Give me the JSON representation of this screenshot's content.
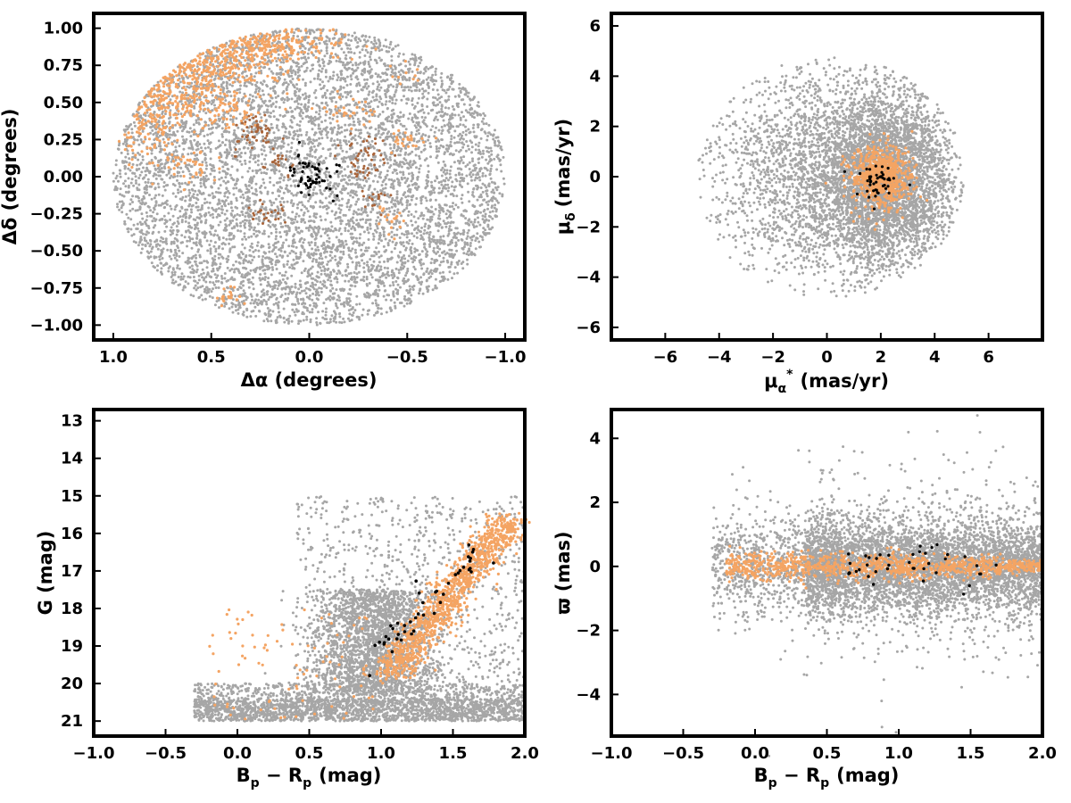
{
  "colors": {
    "field": "#a6a6a6",
    "orange": "#f4a463",
    "brown": "#a9653b",
    "black": "#000000"
  },
  "chart_data": [
    {
      "type": "scatter",
      "xlabel": "Δα (degrees)",
      "ylabel": "Δδ (degrees)",
      "xlim": [
        1.1,
        -1.1
      ],
      "ylim": [
        -1.1,
        1.1
      ],
      "x_reversed": true,
      "xticks": [
        "1.0",
        "0.5",
        "0.0",
        "−0.5",
        "−1.0"
      ],
      "xtick_values": [
        1.0,
        0.5,
        0.0,
        -0.5,
        -1.0
      ],
      "yticks": [
        "1.00",
        "0.75",
        "0.50",
        "0.25",
        "0.00",
        "−0.25",
        "−0.50",
        "−0.75",
        "−1.00"
      ],
      "ytick_values": [
        1.0,
        0.75,
        0.5,
        0.25,
        0.0,
        -0.25,
        -0.5,
        -0.75,
        -1.0
      ],
      "grid": false,
      "series": [
        {
          "role": "field stars",
          "color": "#a6a6a6",
          "sample_points": [
            [
              0.8,
              0.4
            ],
            [
              -0.6,
              -0.5
            ],
            [
              0.2,
              -0.9
            ],
            [
              -0.9,
              0.1
            ],
            [
              0.0,
              0.95
            ],
            [
              0.5,
              -0.5
            ],
            [
              -0.3,
              0.6
            ],
            [
              0.9,
              -0.1
            ]
          ]
        },
        {
          "role": "orange members",
          "color": "#f4a463",
          "sample_points": [
            [
              0.5,
              0.8
            ],
            [
              0.75,
              0.5
            ],
            [
              0.9,
              0.3
            ],
            [
              0.3,
              0.9
            ],
            [
              -0.2,
              0.3
            ],
            [
              -0.45,
              -0.3
            ],
            [
              0.45,
              -0.85
            ],
            [
              0.1,
              0.95
            ]
          ]
        },
        {
          "role": "brown members",
          "color": "#a9653b",
          "sample_points": [
            [
              0.28,
              0.35
            ],
            [
              -0.35,
              0.12
            ],
            [
              0.2,
              -0.25
            ],
            [
              -0.2,
              0.1
            ],
            [
              0.25,
              0.15
            ]
          ]
        },
        {
          "role": "black members",
          "color": "#000000",
          "sample_points": [
            [
              0.05,
              0.05
            ],
            [
              -0.02,
              -0.08
            ],
            [
              0.1,
              0.0
            ],
            [
              -0.08,
              0.1
            ],
            [
              0.0,
              -0.1
            ]
          ]
        }
      ]
    },
    {
      "type": "scatter",
      "xlabel": "μ",
      "xlabel_sub": "α",
      "xlabel_sup": "*",
      "xlabel_units": "(mas/yr)",
      "ylabel": "μ",
      "ylabel_sub": "δ",
      "ylabel_units": "(mas/yr)",
      "xlim": [
        -8,
        8
      ],
      "ylim": [
        -6.5,
        6.5
      ],
      "xticks": [
        "−6",
        "−4",
        "−2",
        "0",
        "2",
        "4",
        "6"
      ],
      "xtick_values": [
        -6,
        -4,
        -2,
        0,
        2,
        4,
        6
      ],
      "yticks": [
        "6",
        "4",
        "2",
        "0",
        "−2",
        "−4",
        "−6"
      ],
      "ytick_values": [
        6,
        4,
        2,
        0,
        -2,
        -4,
        -6
      ],
      "grid": false,
      "series": [
        {
          "role": "field stars",
          "color": "#a6a6a6",
          "sample_points": [
            [
              2,
              2
            ],
            [
              1,
              -1
            ],
            [
              3,
              -3
            ],
            [
              -2,
              1
            ],
            [
              4,
              0
            ],
            [
              0,
              3
            ]
          ]
        },
        {
          "role": "orange members",
          "color": "#f4a463",
          "sample_points": [
            [
              2,
              0
            ],
            [
              1.8,
              -0.5
            ],
            [
              2.3,
              0.4
            ],
            [
              1.5,
              0.2
            ]
          ]
        },
        {
          "role": "black members",
          "color": "#000000",
          "sample_points": [
            [
              1.9,
              -0.3
            ],
            [
              2.1,
              0.1
            ],
            [
              1.6,
              -0.5
            ]
          ]
        }
      ]
    },
    {
      "type": "scatter",
      "xlabel": "B",
      "xlabel_sub1": "p",
      "xlabel_mid": " − R",
      "xlabel_sub2": "p",
      "xlabel_units": "(mag)",
      "ylabel": "G (mag)",
      "xlim": [
        -1.0,
        2.0
      ],
      "ylim": [
        21.4,
        12.7
      ],
      "y_reversed": true,
      "xticks": [
        "−1.0",
        "−0.5",
        "0.0",
        "0.5",
        "1.0",
        "1.5",
        "2.0"
      ],
      "xtick_values": [
        -1.0,
        -0.5,
        0.0,
        0.5,
        1.0,
        1.5,
        2.0
      ],
      "yticks": [
        "21",
        "20",
        "19",
        "18",
        "17",
        "16",
        "15",
        "14",
        "13"
      ],
      "ytick_values": [
        21,
        20,
        19,
        18,
        17,
        16,
        15,
        14,
        13
      ],
      "grid": false,
      "series": [
        {
          "role": "field stars",
          "color": "#a6a6a6",
          "sample_points": [
            [
              0.9,
              20.5
            ],
            [
              1.0,
              18.5
            ],
            [
              1.5,
              20
            ],
            [
              0.3,
              20.7
            ],
            [
              1.2,
              19
            ]
          ]
        },
        {
          "role": "orange members",
          "color": "#f4a463",
          "sample_points": [
            [
              1.2,
              19.2
            ],
            [
              1.4,
              18
            ],
            [
              1.6,
              17
            ],
            [
              1.8,
              16.2
            ],
            [
              0.3,
              19.5
            ]
          ]
        },
        {
          "role": "black members",
          "color": "#000000",
          "sample_points": [
            [
              1.05,
              19.2
            ],
            [
              1.3,
              18.4
            ],
            [
              1.55,
              17.2
            ],
            [
              1.65,
              16.6
            ],
            [
              0.85,
              19.3
            ]
          ]
        }
      ]
    },
    {
      "type": "scatter",
      "xlabel": "B",
      "xlabel_sub1": "p",
      "xlabel_mid": " − R",
      "xlabel_sub2": "p",
      "xlabel_units": "(mag)",
      "ylabel": "ϖ (mas)",
      "xlim": [
        -1.0,
        2.0
      ],
      "ylim": [
        -5.3,
        4.9
      ],
      "xticks": [
        "−1.0",
        "−0.5",
        "0.0",
        "0.5",
        "1.0",
        "1.5",
        "2.0"
      ],
      "xtick_values": [
        -1.0,
        -0.5,
        0.0,
        0.5,
        1.0,
        1.5,
        2.0
      ],
      "yticks": [
        "4",
        "2",
        "0",
        "−2",
        "−4"
      ],
      "ytick_values": [
        4,
        2,
        0,
        -2,
        -4
      ],
      "grid": false,
      "series": [
        {
          "role": "field stars",
          "color": "#a6a6a6",
          "sample_points": [
            [
              1.0,
              0
            ],
            [
              0.8,
              1
            ],
            [
              1.3,
              -1
            ],
            [
              1.6,
              0.5
            ],
            [
              0.5,
              -0.5
            ]
          ]
        },
        {
          "role": "orange members",
          "color": "#f4a463",
          "sample_points": [
            [
              1.2,
              0
            ],
            [
              1.5,
              0.05
            ],
            [
              1.8,
              0
            ],
            [
              0.9,
              -0.2
            ],
            [
              0.0,
              0
            ]
          ]
        },
        {
          "role": "black members",
          "color": "#000000",
          "sample_points": [
            [
              0.9,
              0.5
            ],
            [
              1.1,
              0.2
            ],
            [
              1.6,
              -0.1
            ],
            [
              0.75,
              -0.8
            ]
          ]
        }
      ]
    }
  ]
}
